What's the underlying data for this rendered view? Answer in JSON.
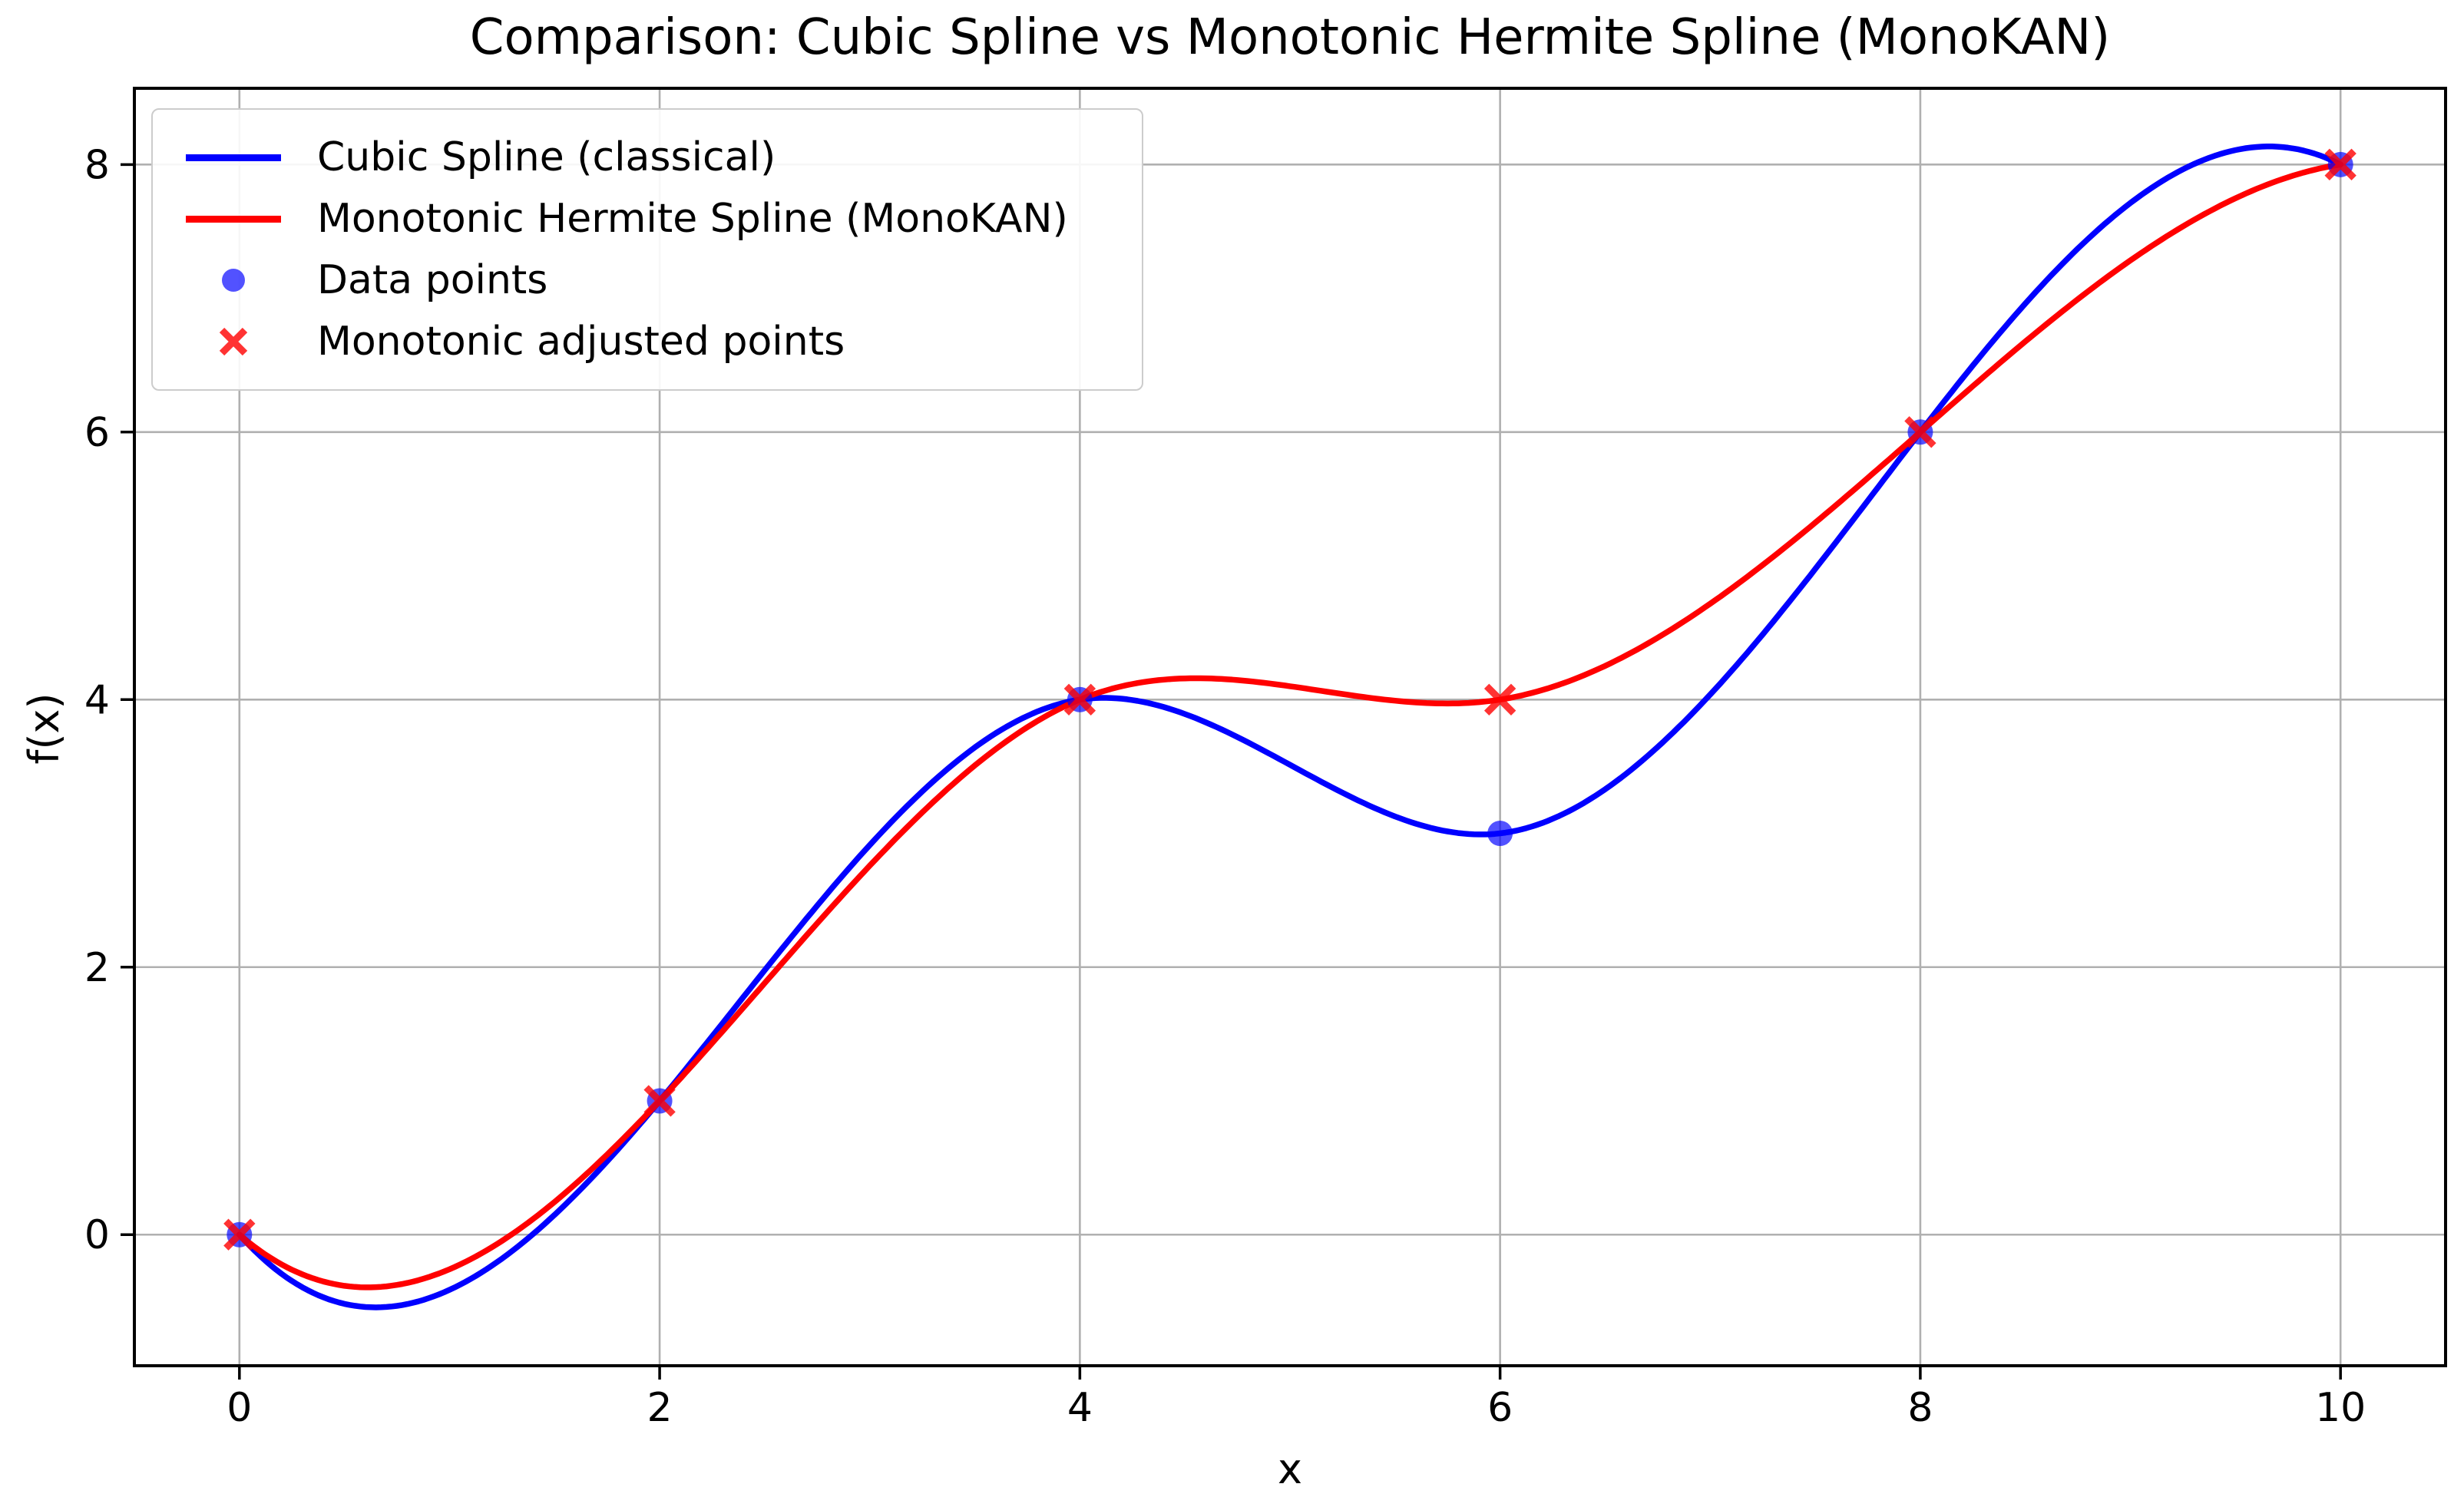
{
  "figure": {
    "title": "Comparison: Cubic Spline vs Monotonic Hermite Spline (MonoKAN)",
    "xlabel": "x",
    "ylabel": "f(x)"
  },
  "legend": {
    "position": "upper left",
    "items": [
      {
        "label": "Cubic Spline (classical)",
        "marker": "line",
        "color": "#0000ff"
      },
      {
        "label": "Monotonic Hermite Spline (MonoKAN)",
        "marker": "line",
        "color": "#ff0000"
      },
      {
        "label": "Data points",
        "marker": "circle",
        "color": "rgba(0,0,255,0.68)"
      },
      {
        "label": "Monotonic adjusted points",
        "marker": "x",
        "color": "rgba(255,0,0,0.8)"
      }
    ]
  },
  "chart_data": {
    "type": "line",
    "title": "Comparison: Cubic Spline vs Monotonic Hermite Spline (MonoKAN)",
    "xlabel": "x",
    "ylabel": "f(x)",
    "xlim": [
      -0.5,
      10.5
    ],
    "ylim": [
      -0.98,
      8.57
    ],
    "xticks": [
      0,
      2,
      4,
      6,
      8,
      10
    ],
    "yticks": [
      0,
      2,
      4,
      6,
      8
    ],
    "xtick_labels": [
      "0",
      "2",
      "4",
      "6",
      "8",
      "10"
    ],
    "ytick_labels": [
      "0",
      "2",
      "4",
      "6",
      "8"
    ],
    "grid": true,
    "legend_position": "upper left",
    "series": [
      {
        "name": "Cubic Spline (classical)",
        "curve": "cubic-spline-not-a-knot",
        "color": "#0000ff",
        "knots_x": [
          0,
          2,
          4,
          6,
          8,
          10
        ],
        "knots_y": [
          0,
          1,
          4,
          3,
          6,
          8
        ]
      },
      {
        "name": "Monotonic Hermite Spline (MonoKAN)",
        "curve": "cubic-spline-not-a-knot",
        "color": "#ff0000",
        "knots_x": [
          0,
          2,
          4,
          6,
          8,
          10
        ],
        "knots_y": [
          0,
          1,
          4,
          4,
          6,
          8
        ]
      }
    ],
    "scatter": [
      {
        "name": "Data points",
        "marker": "circle",
        "color": "rgba(0,0,255,0.68)",
        "x": [
          0,
          2,
          4,
          6,
          8,
          10
        ],
        "y": [
          0,
          1,
          4,
          3,
          6,
          8
        ]
      },
      {
        "name": "Monotonic adjusted points",
        "marker": "x",
        "color": "rgba(255,0,0,0.8)",
        "x": [
          0,
          2,
          4,
          6,
          8,
          10
        ],
        "y": [
          0,
          1,
          4,
          4,
          6,
          8
        ]
      }
    ],
    "style": {
      "grid_color": "#b0b0b0",
      "spine_color": "#000000",
      "tick_color": "#000000",
      "text_color": "#000000",
      "background": "#ffffff"
    }
  }
}
